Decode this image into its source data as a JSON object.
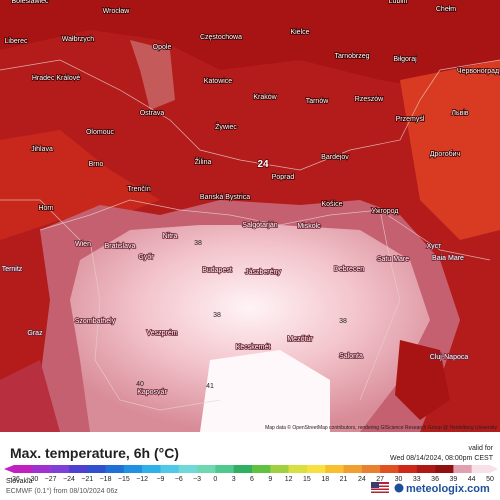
{
  "map": {
    "cities": [
      "Boleslawiec",
      "Wrocław",
      "Lublin",
      "Chełm",
      "Liberec",
      "Wałbrzych",
      "Opole",
      "Częstochowa",
      "Kielce",
      "Tarnobrzeg",
      "Biłgoraj",
      "Червоноград",
      "Hradec Králové",
      "Katowice",
      "Ostrava",
      "Kraków",
      "Tarnów",
      "Rzeszów",
      "Львів",
      "Olomouc",
      "Żywiec",
      "Przemyśl",
      "Jihlava",
      "Brno",
      "Žilina",
      "Poprad",
      "Bardejov",
      "Дрогобич",
      "Trenčín",
      "Banská Bystrica",
      "Košice",
      "Ужгород",
      "Horn",
      "Wien",
      "Bratislava",
      "Nitra",
      "Salgótarján",
      "Miskolc",
      "Хуст",
      "Győr",
      "Baia Mare",
      "Ternitz",
      "Budapest",
      "Jászberény",
      "Debrecen",
      "Satu Mare",
      "Szombathely",
      "Veszprém",
      "Kecskemét",
      "Mezőtúr",
      "Graz",
      "Cluj-Napoca",
      "Salonta",
      "Kaposvár"
    ],
    "temperatures": [
      24,
      38,
      38,
      38,
      40,
      41
    ],
    "attribution": "Map data © OpenStreetMap contributors, rendering GIScience Research Group @ Heidelberg University"
  },
  "legend": {
    "title": "Max. temperature, 6h (°C)",
    "valid_label": "valid for",
    "valid_time": "Wed 08/14/2024, 08:00pm CEST",
    "ticks": [
      "−36",
      "−30",
      "−27",
      "−24",
      "−21",
      "−18",
      "−15",
      "−12",
      "−9",
      "−6",
      "−3",
      "0",
      "3",
      "6",
      "9",
      "12",
      "15",
      "18",
      "21",
      "24",
      "27",
      "30",
      "33",
      "36",
      "39",
      "44",
      "50"
    ],
    "colors": [
      "#c020c0",
      "#a030d0",
      "#8040d8",
      "#5040d0",
      "#3050d0",
      "#2070d8",
      "#2090e0",
      "#30b0e8",
      "#50c8e8",
      "#70d8d8",
      "#70d8b0",
      "#50c890",
      "#30b060",
      "#60c040",
      "#a0d040",
      "#d8e040",
      "#f8e040",
      "#f8c030",
      "#f0a030",
      "#e88030",
      "#e05020",
      "#d02818",
      "#b01818",
      "#901010",
      "#e0a0b0",
      "#f8e0e8"
    ],
    "region": "Slovakia",
    "model": "ECMWF (0.1°) from 08/10/2024 06z",
    "brand": "meteologix.com"
  }
}
